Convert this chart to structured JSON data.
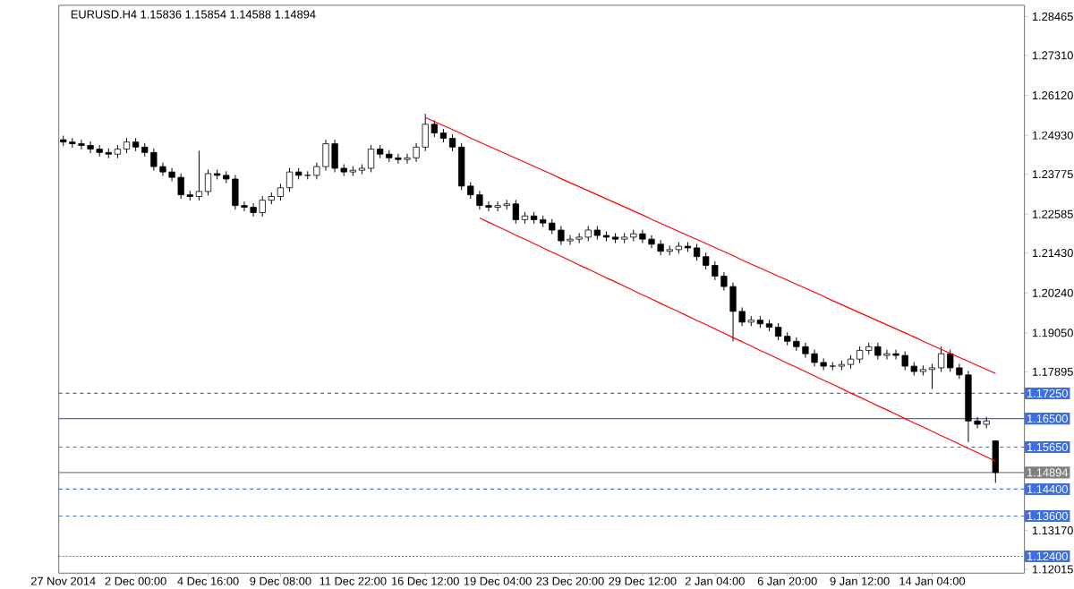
{
  "chart_data": {
    "type": "candlestick",
    "title": "EURUSD.H4  1.15836 1.15854 1.14588 1.14894",
    "ylim": [
      1.119,
      1.288
    ],
    "color": "#000000",
    "categories": [
      "27 Nov 2014",
      null,
      null,
      null,
      null,
      null,
      null,
      null,
      "2 Dec 00:00",
      null,
      null,
      null,
      null,
      null,
      null,
      null,
      "4 Dec 16:00",
      null,
      null,
      null,
      null,
      null,
      null,
      null,
      "9 Dec 08:00",
      null,
      null,
      null,
      null,
      null,
      null,
      null,
      "11 Dec 22:00",
      null,
      null,
      null,
      null,
      null,
      null,
      null,
      "16 Dec 12:00",
      null,
      null,
      null,
      null,
      null,
      null,
      null,
      "19 Dec 04:00",
      null,
      null,
      null,
      null,
      null,
      null,
      null,
      "23 Dec 20:00",
      null,
      null,
      null,
      null,
      null,
      null,
      null,
      "29 Dec 12:00",
      null,
      null,
      null,
      null,
      null,
      null,
      null,
      "2 Jan 04:00",
      null,
      null,
      null,
      null,
      null,
      null,
      null,
      "6 Jan 20:00",
      null,
      null,
      null,
      null,
      null,
      null,
      null,
      "9 Jan 12:00",
      null,
      null,
      null,
      null,
      null,
      null,
      null,
      "14 Jan 04:00",
      null,
      null,
      null,
      null,
      null,
      null,
      null
    ],
    "yticks": [
      1.28465,
      {
        "value": 1.2731,
        "label": "1.27310"
      },
      {
        "value": 1.2612,
        "label": "1.26120"
      },
      {
        "value": 1.2493,
        "label": "1.24930"
      },
      1.23775,
      1.22585,
      {
        "value": 1.2143,
        "label": "1.21430"
      },
      {
        "value": 1.2024,
        "label": "1.20240"
      },
      {
        "value": 1.1905,
        "label": "1.19050"
      },
      1.17895,
      {
        "value": 1.1317,
        "label": "1.13170"
      },
      1.12015
    ],
    "ref_lines": [
      {
        "axis": "y",
        "value": 1.1725,
        "label": "1.17250",
        "color": "#3f6ee0",
        "line_style": "dashed"
      },
      {
        "axis": "y",
        "value": 1.165,
        "label": "1.16500",
        "color": "#3f6ee0",
        "line_style": "solid"
      },
      {
        "axis": "y",
        "value": 1.1565,
        "label": "1.15650",
        "color": "#3f6ee0",
        "line_style": "dashed"
      },
      {
        "axis": "y",
        "value": 1.14894,
        "label": "1.14894",
        "color": "#808080",
        "line_style": "solid"
      },
      {
        "axis": "y",
        "value": 1.144,
        "label": "1.14400",
        "color": "#3f6ee0",
        "line_style": "dashed"
      },
      {
        "axis": "y",
        "value": 1.136,
        "label": "1.13600",
        "color": "#3f6ee0",
        "line_style": "dashed"
      },
      {
        "axis": "y",
        "value": 1.124,
        "label": "1.12400",
        "color": "#3f6ee0",
        "line_style": "dotted"
      }
    ],
    "ohlc": [
      [
        1.248,
        1.2492,
        1.2461,
        1.2473
      ],
      [
        1.2473,
        1.2485,
        1.2456,
        1.2468
      ],
      [
        1.2468,
        1.248,
        1.2451,
        1.2463
      ],
      [
        1.2463,
        1.2475,
        1.244,
        1.2452
      ],
      [
        1.2452,
        1.2464,
        1.243,
        1.2442
      ],
      [
        1.2442,
        1.2454,
        1.2425,
        1.2437
      ],
      [
        1.2437,
        1.2464,
        1.2425,
        1.2452
      ],
      [
        1.2452,
        1.2485,
        1.244,
        1.2473
      ],
      [
        1.2473,
        1.2485,
        1.2446,
        1.2458
      ],
      [
        1.2458,
        1.247,
        1.243,
        1.2442
      ],
      [
        1.2442,
        1.2454,
        1.2388,
        1.24
      ],
      [
        1.24,
        1.2412,
        1.2372,
        1.2384
      ],
      [
        1.2384,
        1.2396,
        1.2356,
        1.2368
      ],
      [
        1.2368,
        1.238,
        1.2304,
        1.2316
      ],
      [
        1.2316,
        1.2328,
        1.2299,
        1.2311
      ],
      [
        1.2311,
        1.2447,
        1.2299,
        1.2326
      ],
      [
        1.2326,
        1.2391,
        1.2314,
        1.2379
      ],
      [
        1.2379,
        1.2391,
        1.2362,
        1.2374
      ],
      [
        1.2374,
        1.2386,
        1.2351,
        1.2363
      ],
      [
        1.2363,
        1.2375,
        1.2272,
        1.2284
      ],
      [
        1.2284,
        1.2296,
        1.2267,
        1.2279
      ],
      [
        1.2279,
        1.2291,
        1.2251,
        1.2263
      ],
      [
        1.2263,
        1.2312,
        1.2251,
        1.23
      ],
      [
        1.23,
        1.2323,
        1.2288,
        1.2311
      ],
      [
        1.2311,
        1.2349,
        1.2299,
        1.2337
      ],
      [
        1.2337,
        1.2396,
        1.2325,
        1.2384
      ],
      [
        1.2384,
        1.2396,
        1.2362,
        1.2374
      ],
      [
        1.2374,
        1.2386,
        1.2362,
        1.2374
      ],
      [
        1.2374,
        1.2412,
        1.2362,
        1.24
      ],
      [
        1.24,
        1.248,
        1.2388,
        1.2468
      ],
      [
        1.2468,
        1.248,
        1.2383,
        1.2395
      ],
      [
        1.2395,
        1.2407,
        1.2372,
        1.2384
      ],
      [
        1.2384,
        1.2401,
        1.2372,
        1.2389
      ],
      [
        1.2389,
        1.2407,
        1.2377,
        1.2395
      ],
      [
        1.2395,
        1.2464,
        1.2383,
        1.2452
      ],
      [
        1.2452,
        1.2464,
        1.2425,
        1.2437
      ],
      [
        1.2437,
        1.2449,
        1.2414,
        1.2426
      ],
      [
        1.2426,
        1.2438,
        1.2409,
        1.2421
      ],
      [
        1.2421,
        1.2438,
        1.2409,
        1.2426
      ],
      [
        1.2426,
        1.247,
        1.2414,
        1.2458
      ],
      [
        1.2458,
        1.2557,
        1.2446,
        1.2526
      ],
      [
        1.2526,
        1.2538,
        1.2488,
        1.25
      ],
      [
        1.25,
        1.2512,
        1.2472,
        1.2484
      ],
      [
        1.2484,
        1.2496,
        1.2446,
        1.2458
      ],
      [
        1.2458,
        1.247,
        1.233,
        1.2342
      ],
      [
        1.2342,
        1.2354,
        1.2304,
        1.2316
      ],
      [
        1.2316,
        1.2328,
        1.2272,
        1.2284
      ],
      [
        1.2284,
        1.2296,
        1.2267,
        1.2279
      ],
      [
        1.2279,
        1.2296,
        1.2267,
        1.2284
      ],
      [
        1.2284,
        1.2301,
        1.2272,
        1.2289
      ],
      [
        1.2289,
        1.2301,
        1.223,
        1.2242
      ],
      [
        1.2242,
        1.2265,
        1.223,
        1.2253
      ],
      [
        1.2253,
        1.2265,
        1.223,
        1.2242
      ],
      [
        1.2242,
        1.2254,
        1.222,
        1.2232
      ],
      [
        1.2232,
        1.2244,
        1.2199,
        1.2211
      ],
      [
        1.2211,
        1.2223,
        1.2167,
        1.2179
      ],
      [
        1.2179,
        1.2196,
        1.2167,
        1.2184
      ],
      [
        1.2184,
        1.2202,
        1.2172,
        1.219
      ],
      [
        1.219,
        1.2223,
        1.2178,
        1.2211
      ],
      [
        1.2211,
        1.2223,
        1.2183,
        1.2195
      ],
      [
        1.2195,
        1.2207,
        1.2178,
        1.219
      ],
      [
        1.219,
        1.2202,
        1.2172,
        1.2184
      ],
      [
        1.2184,
        1.2202,
        1.2172,
        1.219
      ],
      [
        1.219,
        1.2212,
        1.2178,
        1.22
      ],
      [
        1.22,
        1.2212,
        1.2172,
        1.2184
      ],
      [
        1.2184,
        1.2196,
        1.2157,
        1.2169
      ],
      [
        1.2169,
        1.2181,
        1.2136,
        1.2148
      ],
      [
        1.2148,
        1.2165,
        1.2136,
        1.2153
      ],
      [
        1.2153,
        1.2175,
        1.2141,
        1.2163
      ],
      [
        1.2163,
        1.2175,
        1.2146,
        1.2158
      ],
      [
        1.2158,
        1.217,
        1.212,
        1.2132
      ],
      [
        1.2132,
        1.2144,
        1.2094,
        1.2106
      ],
      [
        1.2106,
        1.2118,
        1.2062,
        1.2074
      ],
      [
        1.2074,
        1.2086,
        1.2031,
        1.2043
      ],
      [
        1.2043,
        1.2055,
        1.188,
        1.1969
      ],
      [
        1.1969,
        1.1981,
        1.1925,
        1.1937
      ],
      [
        1.1937,
        1.1955,
        1.1925,
        1.1943
      ],
      [
        1.1943,
        1.1955,
        1.192,
        1.1932
      ],
      [
        1.1932,
        1.1944,
        1.191,
        1.1922
      ],
      [
        1.1922,
        1.1934,
        1.1883,
        1.1895
      ],
      [
        1.1895,
        1.1907,
        1.1868,
        1.188
      ],
      [
        1.188,
        1.1892,
        1.1852,
        1.1864
      ],
      [
        1.1864,
        1.1876,
        1.1831,
        1.1843
      ],
      [
        1.1843,
        1.1855,
        1.1805,
        1.1817
      ],
      [
        1.1817,
        1.1829,
        1.1794,
        1.1806
      ],
      [
        1.1806,
        1.1818,
        1.1794,
        1.1806
      ],
      [
        1.1806,
        1.1823,
        1.1794,
        1.1811
      ],
      [
        1.1811,
        1.1839,
        1.1799,
        1.1827
      ],
      [
        1.1827,
        1.1865,
        1.1815,
        1.1853
      ],
      [
        1.1853,
        1.1876,
        1.1841,
        1.1864
      ],
      [
        1.1864,
        1.1876,
        1.1826,
        1.1838
      ],
      [
        1.1838,
        1.1855,
        1.1826,
        1.1843
      ],
      [
        1.1843,
        1.1855,
        1.1826,
        1.1838
      ],
      [
        1.1838,
        1.185,
        1.1794,
        1.1806
      ],
      [
        1.1806,
        1.1818,
        1.1778,
        1.179
      ],
      [
        1.179,
        1.1808,
        1.1778,
        1.1796
      ],
      [
        1.1796,
        1.1813,
        1.1738,
        1.1801
      ],
      [
        1.1801,
        1.1864,
        1.1789,
        1.1843
      ],
      [
        1.1843,
        1.1855,
        1.1789,
        1.1801
      ],
      [
        1.1801,
        1.1813,
        1.1768,
        1.178
      ],
      [
        1.178,
        1.1792,
        1.158,
        1.1643
      ],
      [
        1.1643,
        1.1655,
        1.1621,
        1.1633
      ],
      [
        1.1633,
        1.1655,
        1.1621,
        1.1643
      ],
      [
        1.15836,
        1.15854,
        1.14588,
        1.14894
      ]
    ],
    "series": [
      {
        "type": "line",
        "color": "#ff0000",
        "values": [
          null,
          null,
          null,
          null,
          null,
          null,
          null,
          null,
          null,
          null,
          null,
          null,
          null,
          null,
          null,
          null,
          null,
          null,
          null,
          null,
          null,
          null,
          null,
          null,
          null,
          null,
          null,
          null,
          null,
          null,
          null,
          null,
          null,
          null,
          null,
          null,
          null,
          null,
          null,
          null,
          1.2546,
          1.2534,
          1.2522,
          1.251,
          1.2498,
          1.2485,
          1.2473,
          1.2461,
          1.2449,
          1.2437,
          1.2425,
          1.2413,
          1.2401,
          1.2389,
          1.2377,
          1.2364,
          1.2352,
          1.234,
          1.2328,
          1.2316,
          1.2304,
          1.2292,
          1.228,
          1.2268,
          1.2256,
          1.2243,
          1.2231,
          1.2219,
          1.2207,
          1.2195,
          1.2183,
          1.2171,
          1.2159,
          1.2147,
          1.2135,
          1.2122,
          1.211,
          1.2098,
          1.2086,
          1.2074,
          1.2062,
          1.205,
          1.2038,
          1.2026,
          1.2014,
          1.2001,
          1.1989,
          1.1977,
          1.1965,
          1.1953,
          1.1941,
          1.1929,
          1.1917,
          1.1905,
          1.1893,
          1.188,
          1.1868,
          1.1856,
          1.1844,
          1.1832,
          1.182,
          1.1808,
          1.1796,
          1.1784
        ]
      },
      {
        "type": "line",
        "color": "#ff0000",
        "values": [
          null,
          null,
          null,
          null,
          null,
          null,
          null,
          null,
          null,
          null,
          null,
          null,
          null,
          null,
          null,
          null,
          null,
          null,
          null,
          null,
          null,
          null,
          null,
          null,
          null,
          null,
          null,
          null,
          null,
          null,
          null,
          null,
          null,
          null,
          null,
          null,
          null,
          null,
          null,
          null,
          null,
          null,
          null,
          null,
          null,
          null,
          1.2247,
          1.2234,
          1.2222,
          1.2209,
          1.2196,
          1.2184,
          1.2171,
          1.2158,
          1.2145,
          1.2133,
          1.212,
          1.2107,
          1.2095,
          1.2082,
          1.2069,
          1.2057,
          1.2044,
          1.2031,
          1.2018,
          1.2006,
          1.1993,
          1.198,
          1.1968,
          1.1955,
          1.1942,
          1.193,
          1.1917,
          1.1904,
          1.1891,
          1.1879,
          1.1866,
          1.1853,
          1.1841,
          1.1828,
          1.1815,
          1.1803,
          1.179,
          1.1777,
          1.1764,
          1.1752,
          1.1739,
          1.1726,
          1.1714,
          1.1701,
          1.1688,
          1.1676,
          1.1663,
          1.165,
          1.1637,
          1.1625,
          1.1612,
          1.1599,
          1.1587,
          1.1574,
          1.1561,
          1.1549,
          1.1536,
          1.1523
        ]
      }
    ]
  }
}
